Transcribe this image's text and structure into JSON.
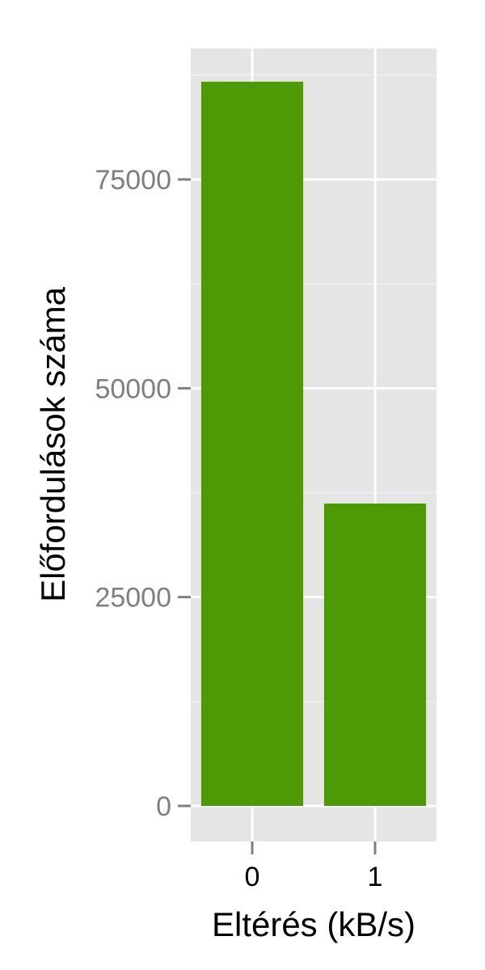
{
  "chart_data": {
    "type": "bar",
    "categories": [
      "0",
      "1"
    ],
    "values": [
      86700,
      36200
    ],
    "xlabel": "Eltérés (kB/s)",
    "ylabel": "Előfordulások száma",
    "ylim": [
      -13000,
      93000
    ],
    "yticks": [
      0,
      25000,
      50000,
      75000
    ],
    "ytick_labels": [
      "0",
      "25000",
      "50000",
      "75000"
    ],
    "grid": true,
    "legend": "none",
    "colors": {
      "bar": "#4e9a06",
      "panel": "#e5e5e5",
      "gridline": "#ffffff",
      "tick_text": "#7f7f7f",
      "tick_mark": "#7f7f7f"
    }
  }
}
